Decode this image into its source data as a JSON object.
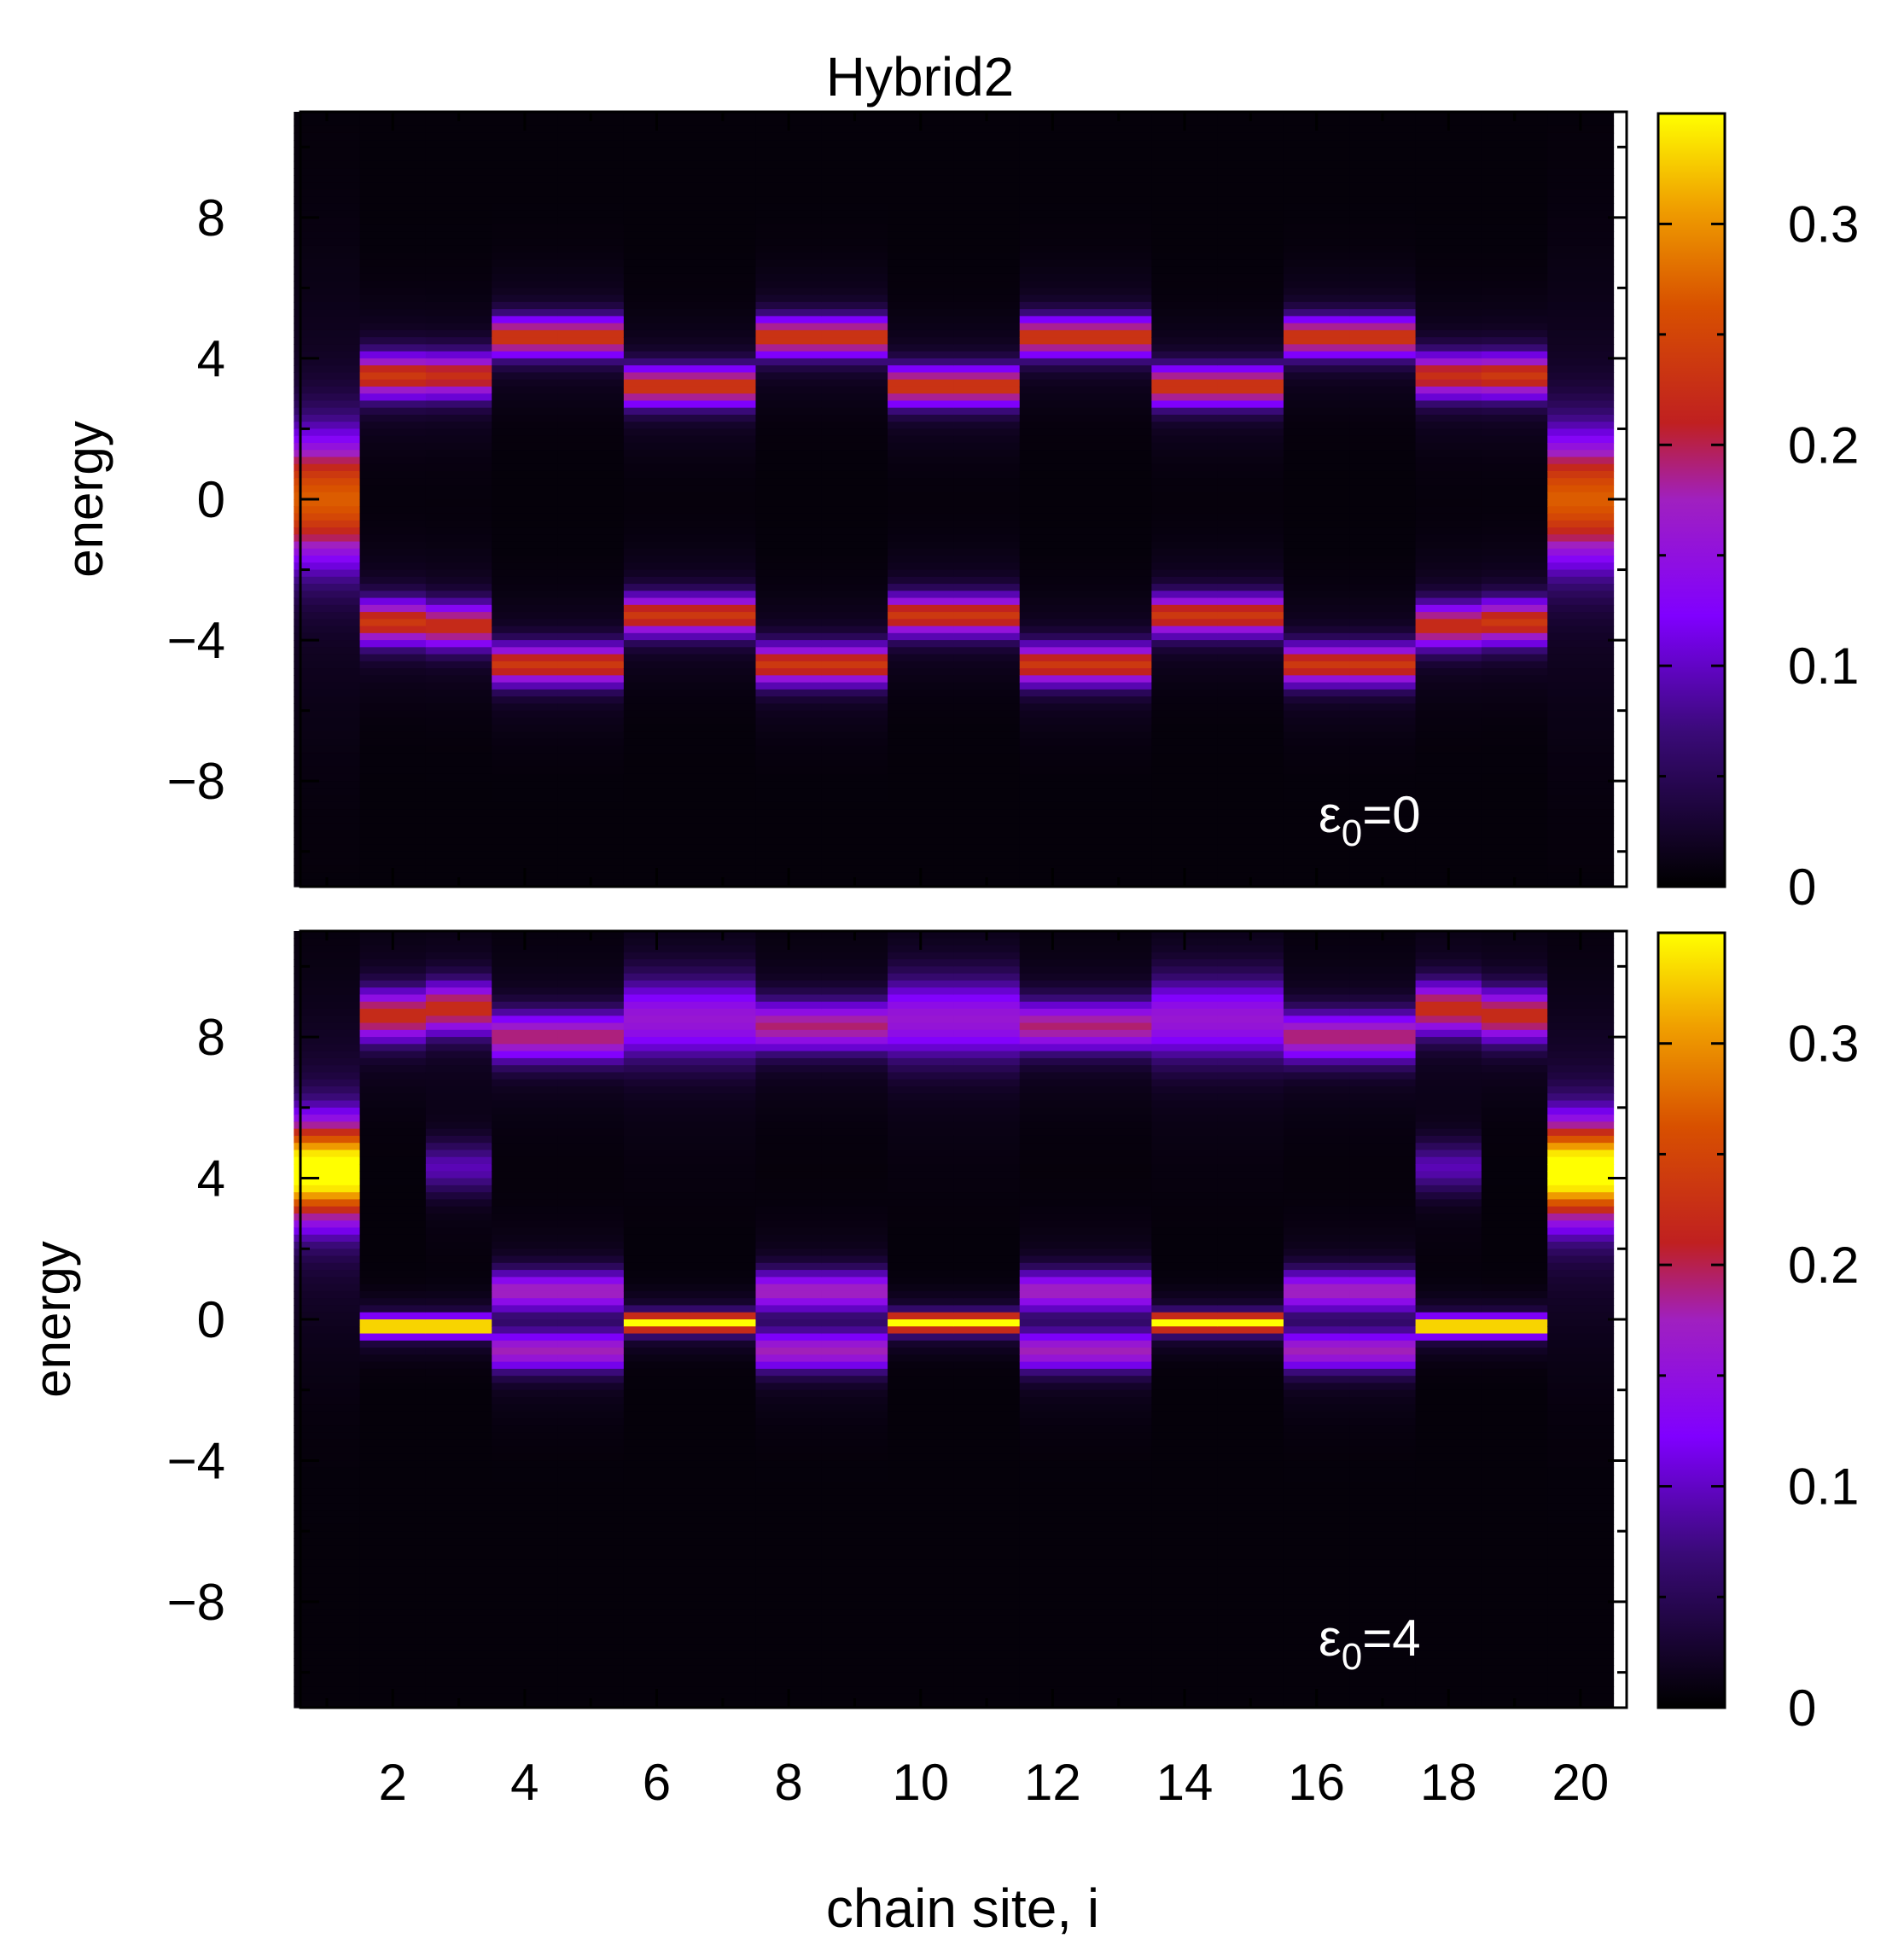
{
  "figure": {
    "title": "Hybrid2",
    "xlabel": "chain site, i"
  },
  "chart_data": [
    {
      "type": "heatmap",
      "title": "Hybrid2",
      "xlabel": "",
      "ylabel": "energy",
      "annotation": {
        "symbol": "ε",
        "sub": "0",
        "rest": "=0"
      },
      "x_sites": [
        1,
        20
      ],
      "xlim": [
        0.6,
        20.7
      ],
      "ylim": [
        -11,
        11
      ],
      "x_ticks": [
        2,
        4,
        6,
        8,
        10,
        12,
        14,
        16,
        18,
        20
      ],
      "y_ticks": [
        -8,
        -4,
        0,
        4,
        8
      ],
      "y_tick_labels": [
        "−8",
        "−4",
        "0",
        "4",
        "8"
      ],
      "grid": false,
      "colormap": "gnuplot-pm3d-black-purple-red-yellow",
      "colorbar": {
        "range": [
          0,
          0.35
        ],
        "ticks": [
          0,
          0.1,
          0.2,
          0.3
        ],
        "tick_labels": [
          "0",
          "0.1",
          "0.2",
          "0.3"
        ]
      },
      "site_peaks": [
        {
          "site": 1,
          "peaks": [
            [
              0,
              0.24,
              1.3
            ]
          ]
        },
        {
          "site": 2,
          "peaks": [
            [
              3.5,
              0.21,
              0.45
            ],
            [
              -3.5,
              0.21,
              0.45
            ]
          ]
        },
        {
          "site": 3,
          "peaks": [
            [
              3.5,
              0.2,
              0.45
            ],
            [
              -3.6,
              0.2,
              0.45
            ]
          ]
        },
        {
          "site": 4,
          "peaks": [
            [
              4.6,
              0.21,
              0.4
            ],
            [
              -4.7,
              0.21,
              0.4
            ]
          ]
        },
        {
          "site": 5,
          "peaks": [
            [
              4.6,
              0.21,
              0.4
            ],
            [
              -4.7,
              0.21,
              0.4
            ]
          ]
        },
        {
          "site": 6,
          "peaks": [
            [
              3.2,
              0.21,
              0.4
            ],
            [
              -3.3,
              0.21,
              0.4
            ]
          ]
        },
        {
          "site": 7,
          "peaks": [
            [
              3.2,
              0.21,
              0.4
            ],
            [
              -3.3,
              0.21,
              0.4
            ]
          ]
        },
        {
          "site": 8,
          "peaks": [
            [
              4.6,
              0.21,
              0.4
            ],
            [
              -4.7,
              0.21,
              0.4
            ]
          ]
        },
        {
          "site": 9,
          "peaks": [
            [
              4.6,
              0.21,
              0.4
            ],
            [
              -4.7,
              0.21,
              0.4
            ]
          ]
        },
        {
          "site": 10,
          "peaks": [
            [
              3.2,
              0.21,
              0.4
            ],
            [
              -3.3,
              0.21,
              0.4
            ]
          ]
        },
        {
          "site": 11,
          "peaks": [
            [
              3.2,
              0.21,
              0.4
            ],
            [
              -3.3,
              0.21,
              0.4
            ]
          ]
        },
        {
          "site": 12,
          "peaks": [
            [
              4.6,
              0.21,
              0.4
            ],
            [
              -4.7,
              0.21,
              0.4
            ]
          ]
        },
        {
          "site": 13,
          "peaks": [
            [
              4.6,
              0.21,
              0.4
            ],
            [
              -4.7,
              0.21,
              0.4
            ]
          ]
        },
        {
          "site": 14,
          "peaks": [
            [
              3.2,
              0.21,
              0.4
            ],
            [
              -3.3,
              0.21,
              0.4
            ]
          ]
        },
        {
          "site": 15,
          "peaks": [
            [
              3.2,
              0.21,
              0.4
            ],
            [
              -3.3,
              0.21,
              0.4
            ]
          ]
        },
        {
          "site": 16,
          "peaks": [
            [
              4.6,
              0.21,
              0.4
            ],
            [
              -4.7,
              0.21,
              0.4
            ]
          ]
        },
        {
          "site": 17,
          "peaks": [
            [
              4.6,
              0.21,
              0.4
            ],
            [
              -4.7,
              0.21,
              0.4
            ]
          ]
        },
        {
          "site": 18,
          "peaks": [
            [
              3.5,
              0.2,
              0.45
            ],
            [
              -3.6,
              0.2,
              0.45
            ]
          ]
        },
        {
          "site": 19,
          "peaks": [
            [
              3.5,
              0.21,
              0.45
            ],
            [
              -3.5,
              0.21,
              0.45
            ]
          ]
        },
        {
          "site": 20,
          "peaks": [
            [
              0,
              0.24,
              1.3
            ]
          ]
        }
      ]
    },
    {
      "type": "heatmap",
      "xlabel": "chain site, i",
      "ylabel": "energy",
      "annotation": {
        "symbol": "ε",
        "sub": "0",
        "rest": "=4"
      },
      "x_sites": [
        1,
        20
      ],
      "xlim": [
        0.6,
        20.7
      ],
      "ylim": [
        -11,
        11
      ],
      "x_ticks": [
        2,
        4,
        6,
        8,
        10,
        12,
        14,
        16,
        18,
        20
      ],
      "x_tick_labels": [
        "2",
        "4",
        "6",
        "8",
        "10",
        "12",
        "14",
        "16",
        "18",
        "20"
      ],
      "y_ticks": [
        -8,
        -4,
        0,
        4,
        8
      ],
      "y_tick_labels": [
        "−8",
        "−4",
        "0",
        "4",
        "8"
      ],
      "grid": false,
      "colormap": "gnuplot-pm3d-black-purple-red-yellow",
      "colorbar": {
        "range": [
          0,
          0.35
        ],
        "ticks": [
          0,
          0.1,
          0.2,
          0.3
        ],
        "tick_labels": [
          "0",
          "0.1",
          "0.2",
          "0.3"
        ]
      },
      "site_peaks": [
        {
          "site": 1,
          "peaks": [
            [
              4.2,
              0.34,
              1.0
            ]
          ]
        },
        {
          "site": 2,
          "peaks": [
            [
              -0.2,
              0.34,
              0.18
            ],
            [
              8.6,
              0.2,
              0.5
            ]
          ]
        },
        {
          "site": 3,
          "peaks": [
            [
              -0.2,
              0.34,
              0.18
            ],
            [
              8.8,
              0.2,
              0.5
            ],
            [
              4.3,
              0.08,
              0.5
            ]
          ]
        },
        {
          "site": 4,
          "peaks": [
            [
              0.8,
              0.15,
              0.4
            ],
            [
              -0.9,
              0.15,
              0.4
            ],
            [
              8.0,
              0.17,
              0.5
            ]
          ]
        },
        {
          "site": 5,
          "peaks": [
            [
              0.8,
              0.15,
              0.4
            ],
            [
              -0.9,
              0.15,
              0.4
            ],
            [
              8.0,
              0.17,
              0.5
            ]
          ]
        },
        {
          "site": 6,
          "peaks": [
            [
              -0.1,
              0.34,
              0.18
            ],
            [
              8.5,
              0.14,
              0.8
            ]
          ]
        },
        {
          "site": 7,
          "peaks": [
            [
              -0.1,
              0.34,
              0.18
            ],
            [
              8.5,
              0.14,
              0.8
            ]
          ]
        },
        {
          "site": 8,
          "peaks": [
            [
              0.8,
              0.15,
              0.4
            ],
            [
              -0.9,
              0.15,
              0.4
            ],
            [
              8.3,
              0.17,
              0.5
            ]
          ]
        },
        {
          "site": 9,
          "peaks": [
            [
              0.8,
              0.15,
              0.4
            ],
            [
              -0.9,
              0.15,
              0.4
            ],
            [
              8.3,
              0.17,
              0.5
            ]
          ]
        },
        {
          "site": 10,
          "peaks": [
            [
              -0.1,
              0.34,
              0.18
            ],
            [
              8.5,
              0.14,
              0.8
            ]
          ]
        },
        {
          "site": 11,
          "peaks": [
            [
              -0.1,
              0.34,
              0.18
            ],
            [
              8.5,
              0.14,
              0.8
            ]
          ]
        },
        {
          "site": 12,
          "peaks": [
            [
              0.8,
              0.15,
              0.4
            ],
            [
              -0.9,
              0.15,
              0.4
            ],
            [
              8.3,
              0.17,
              0.5
            ]
          ]
        },
        {
          "site": 13,
          "peaks": [
            [
              0.8,
              0.15,
              0.4
            ],
            [
              -0.9,
              0.15,
              0.4
            ],
            [
              8.3,
              0.17,
              0.5
            ]
          ]
        },
        {
          "site": 14,
          "peaks": [
            [
              -0.1,
              0.34,
              0.18
            ],
            [
              8.5,
              0.14,
              0.8
            ]
          ]
        },
        {
          "site": 15,
          "peaks": [
            [
              -0.1,
              0.34,
              0.18
            ],
            [
              8.5,
              0.14,
              0.8
            ]
          ]
        },
        {
          "site": 16,
          "peaks": [
            [
              0.8,
              0.15,
              0.4
            ],
            [
              -0.9,
              0.15,
              0.4
            ],
            [
              8.0,
              0.17,
              0.5
            ]
          ]
        },
        {
          "site": 17,
          "peaks": [
            [
              0.8,
              0.15,
              0.4
            ],
            [
              -0.9,
              0.15,
              0.4
            ],
            [
              8.0,
              0.17,
              0.5
            ]
          ]
        },
        {
          "site": 18,
          "peaks": [
            [
              -0.2,
              0.34,
              0.18
            ],
            [
              8.8,
              0.2,
              0.5
            ],
            [
              4.3,
              0.08,
              0.5
            ]
          ]
        },
        {
          "site": 19,
          "peaks": [
            [
              -0.2,
              0.34,
              0.18
            ],
            [
              8.6,
              0.2,
              0.5
            ]
          ]
        },
        {
          "site": 20,
          "peaks": [
            [
              4.2,
              0.34,
              1.0
            ]
          ]
        }
      ]
    }
  ]
}
